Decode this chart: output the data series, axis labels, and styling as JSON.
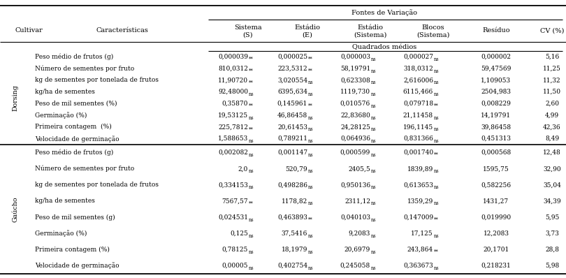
{
  "characteristics": [
    "Peso médio de frutos (g)",
    "Número de sementes por fruto",
    "kg de sementes por tonelada de frutos",
    "kg/ha de sementes",
    "Peso de mil sementes (%)",
    "Germinação (%)",
    "Primeira contagem  (%)",
    "Velocidade de germinação"
  ],
  "characteristics_gauco": [
    "Peso médio de frutos (g)",
    "Número de sementes por fruto",
    "kg de sementes por tonelada de frutos",
    "kg/ha de sementes",
    "Peso de mil sementes (g)",
    "Germinação (%)",
    "Primeira contagem (%)",
    "Velocidade de germinação"
  ],
  "dorsing_data": [
    [
      "0,000039",
      "**",
      "0,000025",
      "**",
      "0,000003",
      "ns",
      "0,000027",
      "ns",
      "0,000002",
      "5,16"
    ],
    [
      "810,0312",
      "**",
      "223,5312",
      "**",
      "58,19791",
      "ns",
      "318,0312",
      "ns",
      "59,47569",
      "11,25"
    ],
    [
      "11,90720",
      "**",
      "3,020554",
      "ns",
      "0,623308",
      "ns",
      "2,616006",
      "ns",
      "1,109053",
      "11,32"
    ],
    [
      "92,48000",
      "ns",
      "6395,634",
      "ns",
      "1119,730",
      "ns",
      "6115,466",
      "ns",
      "2504,983",
      "11,50"
    ],
    [
      "0,35870",
      "**",
      "0,145961",
      "**",
      "0,010576",
      "ns",
      "0,079718",
      "**",
      "0,008229",
      "2,60"
    ],
    [
      "19,53125",
      "ns",
      "46,86458",
      "ns",
      "22,83680",
      "ns",
      "21,11458",
      "ns",
      "14,19791",
      "4,99"
    ],
    [
      "225,7812",
      "**",
      "20,61453",
      "ns",
      "24,28125",
      "ns",
      "196,1145",
      "ns",
      "39,86458",
      "42,36"
    ],
    [
      "1,588653",
      "ns",
      "0,789211",
      "ns",
      "0,064936",
      "ns",
      "0,831366",
      "ns",
      "0,451313",
      "8,49"
    ]
  ],
  "gauco_data": [
    [
      "0,002082",
      "ns",
      "0,001147",
      "ns",
      "0,000599",
      "ns",
      "0,001740",
      "**",
      "0,000568",
      "12,48"
    ],
    [
      "2,0",
      "ns",
      "520,79",
      "ns",
      "2405,5",
      "ns",
      "1839,89",
      "ns",
      "1595,75",
      "32,90"
    ],
    [
      "0,334153",
      "ns",
      "0,498286",
      "ns",
      "0,950136",
      "ns",
      "0,613653",
      "ns",
      "0,582256",
      "35,04"
    ],
    [
      "7567,57",
      "**",
      "1178,82",
      "ns",
      "2311,12",
      "ns",
      "1359,29",
      "ns",
      "1431,27",
      "34,39"
    ],
    [
      "0,024531",
      "ns",
      "0,463893",
      "**",
      "0,040103",
      "ns",
      "0,147009",
      "**",
      "0,019990",
      "5,95"
    ],
    [
      "0,125",
      "ns",
      "37,5416",
      "ns",
      "9,2083",
      "ns",
      "17,125",
      "ns",
      "12,2083",
      "3,73"
    ],
    [
      "0,78125",
      "ns",
      "18,1979",
      "ns",
      "20,6979",
      "ns",
      "243,864",
      "**",
      "20,1701",
      "28,8"
    ],
    [
      "0,00005",
      "ns",
      "0,402754",
      "ns",
      "0,245058",
      "ns",
      "0,363673",
      "ns",
      "0,218231",
      "5,98"
    ]
  ],
  "col_headers": [
    "Sistema\n(S)",
    "Estádio\n(E)",
    "Estádio\n(Sistema)",
    "Blocos\n(Sistema)",
    "Resíduo",
    "CV (%)"
  ],
  "cultivar_dorsing": "Dorsing",
  "cultivar_gauco": "Gaúcho"
}
